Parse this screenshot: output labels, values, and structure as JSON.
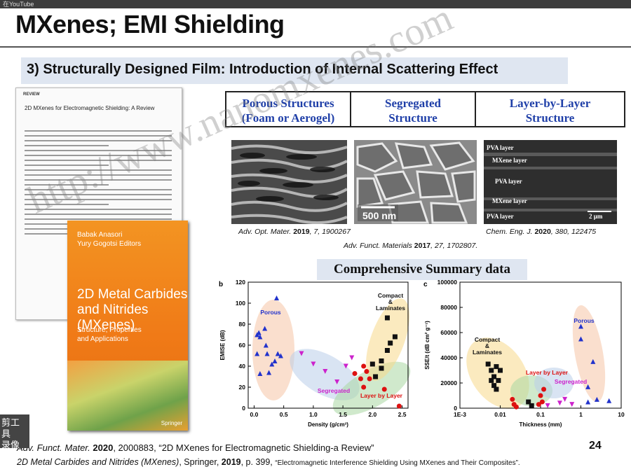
{
  "window": {
    "source_label": "在YouTube"
  },
  "slide": {
    "title": "MXenes; EMI Shielding",
    "subtitle": "3) Structurally Designed Film: Introduction of Internal Scattering Effect",
    "page_number": "24",
    "review_paper": {
      "tag": "REVIEW",
      "title": "2D MXenes for Electromagnetic Shielding: A Review"
    },
    "book": {
      "editors": [
        "Babak Anasori",
        "Yury Gogotsi",
        "Editors"
      ],
      "title_lines": [
        "2D Metal Carbides",
        "and Nitrides (MXenes)"
      ],
      "subtitle_lines": [
        "Structure, Properties",
        "and Applications"
      ],
      "publisher": "Springer"
    },
    "structures": [
      {
        "line1": "Porous Structures",
        "line2": "(Foam or Aerogel)"
      },
      {
        "line1": "Segregated",
        "line2": "Structure"
      },
      {
        "line1": "Layer-by-Layer",
        "line2": "Structure"
      }
    ],
    "sem": {
      "scale_bar": "500 nm",
      "layers": [
        "PVA layer",
        "MXene layer",
        "PVA layer",
        "MXene layer",
        "PVA layer"
      ],
      "scale_bar2": "2 μm"
    },
    "citations": {
      "c1_journal": "Adv. Opt. Mater.",
      "c1_year": "2019",
      "c1_rest": ", 7, 1900267",
      "c2_journal": "Adv. Funct. Materials",
      "c2_year": "2017",
      "c2_rest": ", 27, 1702807.",
      "c3_journal": "Chem. Eng. J.",
      "c3_year": "2020",
      "c3_rest": ", 380, 122475"
    },
    "summary_label": "Comprehensive Summary data",
    "footer": {
      "line1_journal": "Adv. Funct. Mater.",
      "line1_year": "2020",
      "line1_rest": ", 2000883, “2D MXenes for Electromagnetic Shielding-a Review”",
      "line2_title": "2D Metal Carbides and Nitrides (MXenes)",
      "line2_mid": ", Springer, ",
      "line2_year": "2019",
      "line2_page": ", p. 399, ",
      "line2_chapter": "“Electromagnetic Interference Shielding Using MXenes and Their Composites”."
    },
    "watermark": "http://www.nanomxenes.com",
    "side_tool": [
      "剪工具",
      "录像机"
    ]
  },
  "chart_data": [
    {
      "type": "scatter",
      "panel": "b",
      "xlabel": "Density (g/cm³)",
      "ylabel": "EMISE (dB)",
      "xlim": [
        -0.1,
        2.6
      ],
      "ylim": [
        0,
        120
      ],
      "xticks": [
        "0.0",
        "0.5",
        "1.0",
        "1.5",
        "2.0",
        "2.5"
      ],
      "yticks": [
        "0",
        "20",
        "40",
        "60",
        "80",
        "100",
        "120"
      ],
      "groups": [
        {
          "name": "Porous",
          "color": "#2233cc",
          "marker": "triangle-up",
          "points": [
            [
              0.05,
              70
            ],
            [
              0.08,
              72
            ],
            [
              0.1,
              68
            ],
            [
              0.18,
              76
            ],
            [
              0.2,
              60
            ],
            [
              0.22,
              52
            ],
            [
              0.05,
              52
            ],
            [
              0.3,
              42
            ],
            [
              0.35,
              45
            ],
            [
              0.4,
              52
            ],
            [
              0.45,
              50
            ],
            [
              0.38,
              105
            ],
            [
              0.1,
              33
            ],
            [
              0.25,
              34
            ]
          ]
        },
        {
          "name": "Segregated",
          "color": "#cc22cc",
          "marker": "triangle-down",
          "points": [
            [
              0.8,
              52
            ],
            [
              1.0,
              42
            ],
            [
              1.2,
              35
            ],
            [
              1.4,
              25
            ],
            [
              1.55,
              40
            ],
            [
              1.65,
              48
            ]
          ]
        },
        {
          "name": "Layer by Layer",
          "color": "#dd1111",
          "marker": "circle",
          "points": [
            [
              1.8,
              28
            ],
            [
              1.85,
              20
            ],
            [
              1.9,
              35
            ],
            [
              1.7,
              33
            ],
            [
              1.95,
              28
            ],
            [
              2.2,
              18
            ],
            [
              2.45,
              2
            ],
            [
              1.85,
              40
            ]
          ]
        },
        {
          "name": "Compact & Laminates",
          "color": "#111111",
          "marker": "square",
          "points": [
            [
              2.0,
              42
            ],
            [
              2.15,
              45
            ],
            [
              2.25,
              55
            ],
            [
              2.3,
              62
            ],
            [
              2.38,
              68
            ],
            [
              2.25,
              86
            ],
            [
              2.15,
              38
            ],
            [
              2.05,
              30
            ]
          ]
        }
      ],
      "labels": [
        "Porous",
        "Segregated",
        "Layer by Layer",
        "Compact & Laminates"
      ]
    },
    {
      "type": "scatter",
      "panel": "c",
      "xlabel": "Thickness (mm)",
      "ylabel": "SSE/t (dB cm² g⁻¹)",
      "xscale": "log",
      "xlim": [
        0.001,
        10
      ],
      "ylim": [
        0,
        100000
      ],
      "xticks": [
        "1E-3",
        "0.01",
        "0.1",
        "1",
        "10"
      ],
      "yticks": [
        "0",
        "20000",
        "40000",
        "60000",
        "80000",
        "100000"
      ],
      "groups": [
        {
          "name": "Compact & Laminates",
          "color": "#111111",
          "marker": "square",
          "points": [
            [
              0.005,
              35000
            ],
            [
              0.006,
              30000
            ],
            [
              0.007,
              25000
            ],
            [
              0.008,
              33000
            ],
            [
              0.009,
              22000
            ],
            [
              0.007,
              18000
            ],
            [
              0.01,
              30000
            ],
            [
              0.006,
              22000
            ],
            [
              0.008,
              15000
            ],
            [
              0.05,
              5000
            ],
            [
              0.06,
              2000
            ]
          ]
        },
        {
          "name": "Layer by Layer",
          "color": "#dd1111",
          "marker": "circle",
          "points": [
            [
              0.02,
              7000
            ],
            [
              0.022,
              3000
            ],
            [
              0.025,
              1000
            ],
            [
              0.1,
              10000
            ],
            [
              0.12,
              15000
            ],
            [
              0.11,
              5000
            ],
            [
              0.09,
              3000
            ]
          ]
        },
        {
          "name": "Segregated",
          "color": "#cc22cc",
          "marker": "triangle-down",
          "points": [
            [
              0.3,
              4000
            ],
            [
              0.4,
              7000
            ],
            [
              0.6,
              3000
            ],
            [
              0.15,
              2000
            ]
          ]
        },
        {
          "name": "Porous",
          "color": "#2233cc",
          "marker": "triangle-up",
          "points": [
            [
              1,
              65000
            ],
            [
              1,
              55000
            ],
            [
              2,
              37000
            ],
            [
              1.5,
              17000
            ],
            [
              1.5,
              5000
            ],
            [
              2.5,
              7000
            ],
            [
              5,
              6000
            ]
          ]
        }
      ],
      "labels": [
        "Compact & Laminates",
        "Layer by Layer",
        "Segregated",
        "Porous"
      ]
    }
  ]
}
